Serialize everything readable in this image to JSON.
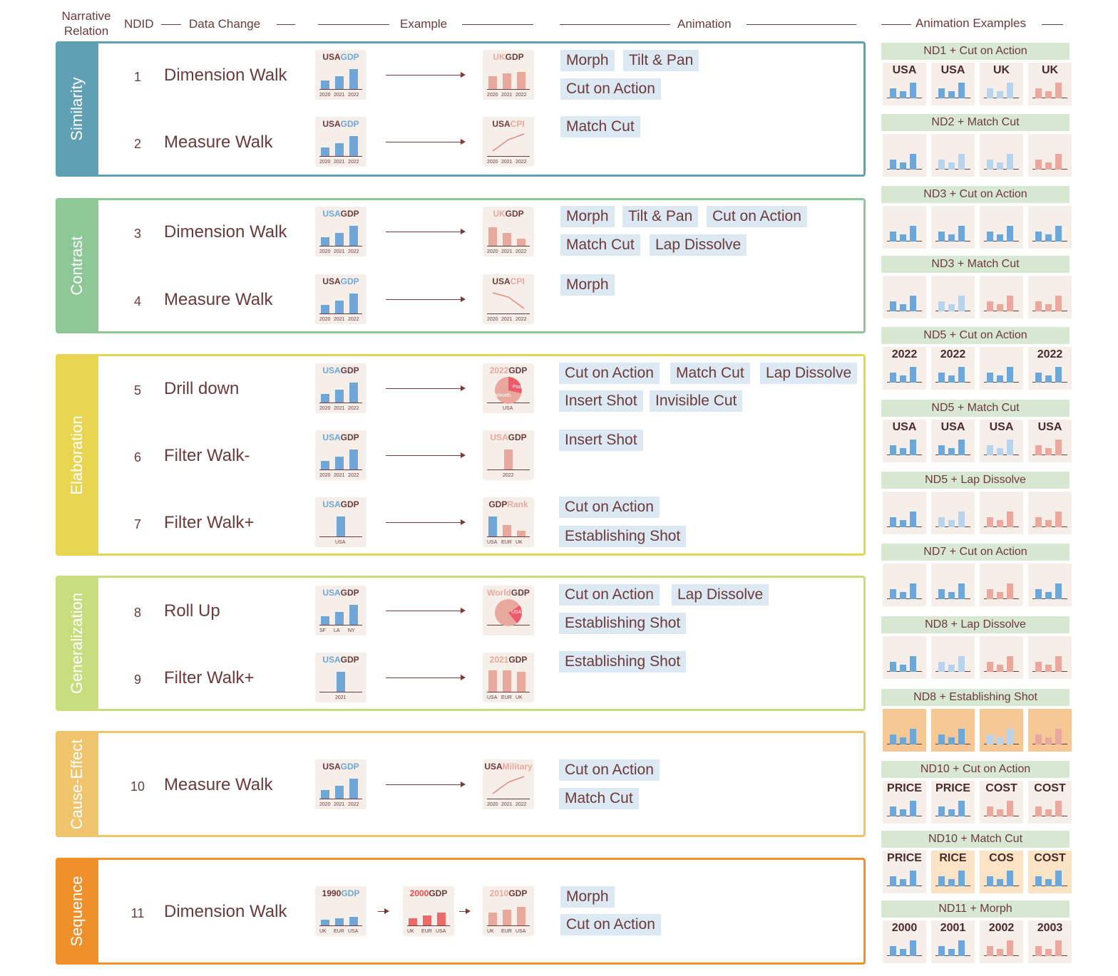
{
  "header": {
    "narrative_relation": "Narrative Relation",
    "ndid": "NDID",
    "data_change": "Data Change",
    "example": "Example",
    "animation": "Animation",
    "animation_examples": "Animation Examples"
  },
  "groups": [
    {
      "name": "Similarity",
      "color": "#5fa0b5"
    },
    {
      "name": "Contrast",
      "color": "#8ec896"
    },
    {
      "name": "Elaboration",
      "color": "#e8d653"
    },
    {
      "name": "Generalization",
      "color": "#c8de7e"
    },
    {
      "name": "Cause-Effect",
      "color": "#f0c46c"
    },
    {
      "name": "Sequence",
      "color": "#f0902a"
    }
  ],
  "rows": [
    {
      "id": "1",
      "change": "Dimension Walk",
      "from": {
        "a": "USA",
        "b": "GDP"
      },
      "to": {
        "a": "UK",
        "b": "GDP"
      },
      "anims": [
        "Morph",
        "Tilt & Pan",
        "Cut on Action"
      ]
    },
    {
      "id": "2",
      "change": "Measure Walk",
      "from": {
        "a": "USA",
        "b": "GDP"
      },
      "to": {
        "a": "USA",
        "b": "CPI"
      },
      "anims": [
        "Match Cut"
      ]
    },
    {
      "id": "3",
      "change": "Dimension Walk",
      "from": {
        "a": "USA",
        "b": "GDP"
      },
      "to": {
        "a": "UK",
        "b": "GDP"
      },
      "anims": [
        "Morph",
        "Tilt & Pan",
        "Cut on Action",
        "Match Cut",
        "Lap Dissolve"
      ]
    },
    {
      "id": "4",
      "change": "Measure Walk",
      "from": {
        "a": "USA",
        "b": "GDP"
      },
      "to": {
        "a": "USA",
        "b": "CPI"
      },
      "anims": [
        "Morph"
      ]
    },
    {
      "id": "5",
      "change": "Drill down",
      "from": {
        "a": "USA",
        "b": "GDP"
      },
      "to": {
        "a": "2022",
        "b": "GDP"
      },
      "anims": [
        "Cut on Action",
        "Match Cut",
        "Lap Dissolve",
        "Insert Shot",
        "Invisible Cut"
      ]
    },
    {
      "id": "6",
      "change": "Filter Walk-",
      "from": {
        "a": "USA",
        "b": "GDP"
      },
      "to": {
        "a": "USA",
        "b": "GDP"
      },
      "anims": [
        "Insert Shot"
      ]
    },
    {
      "id": "7",
      "change": "Filter Walk+",
      "from": {
        "a": "USA",
        "b": "GDP"
      },
      "to": {
        "a": "GDP",
        "b": "Rank"
      },
      "anims": [
        "Cut on Action",
        "Establishing Shot"
      ]
    },
    {
      "id": "8",
      "change": "Roll Up",
      "from": {
        "a": "USA",
        "b": "GDP"
      },
      "to": {
        "a": "World",
        "b": "GDP"
      },
      "anims": [
        "Cut on Action",
        "Lap Dissolve",
        "Establishing Shot"
      ]
    },
    {
      "id": "9",
      "change": "Filter Walk+",
      "from": {
        "a": "USA",
        "b": "GDP"
      },
      "to": {
        "a": "2021",
        "b": "GDP"
      },
      "anims": [
        "Establishing Shot"
      ]
    },
    {
      "id": "10",
      "change": "Measure Walk",
      "from": {
        "a": "USA",
        "b": "GDP"
      },
      "to": {
        "a": "USA",
        "b": "Military"
      },
      "anims": [
        "Cut on Action",
        "Match Cut"
      ]
    },
    {
      "id": "11",
      "change": "Dimension Walk",
      "from": {
        "a": "1990",
        "b": "GDP"
      },
      "mid": {
        "a": "2000",
        "b": "GDP"
      },
      "to": {
        "a": "2010",
        "b": "GDP"
      },
      "anims": [
        "Morph",
        "Cut on Action"
      ]
    }
  ],
  "thumb_labels": {
    "years": [
      "2020",
      "2021",
      "2022"
    ],
    "year_single_2022": "2022",
    "year_single_2021": "2021",
    "usa": "USA",
    "cities": [
      "SF",
      "LA",
      "NY"
    ],
    "countries": [
      "USA",
      "EUR",
      "UK"
    ],
    "countries2": [
      "UK",
      "EUR",
      "USA"
    ],
    "pie_poor": "Poor",
    "pie_wealth": "Wealth"
  },
  "examples": [
    {
      "title": "ND1 + Cut on Action",
      "tiles": [
        "USA",
        "USA",
        "UK",
        "UK"
      ]
    },
    {
      "title": "ND2 + Match Cut",
      "tiles": [
        "",
        "",
        "",
        ""
      ]
    },
    {
      "title": "ND3 + Cut on Action",
      "tiles": [
        "",
        "",
        "",
        ""
      ]
    },
    {
      "title": "ND3 + Match Cut",
      "tiles": [
        "",
        "",
        "",
        ""
      ]
    },
    {
      "title": "ND5 + Cut on Action",
      "tiles": [
        "2022",
        "2022",
        "",
        "2022"
      ]
    },
    {
      "title": "ND5 + Match Cut",
      "tiles": [
        "USA",
        "USA",
        "USA",
        "USA"
      ]
    },
    {
      "title": "ND5 + Lap Dissolve",
      "tiles": [
        "",
        "",
        "",
        ""
      ]
    },
    {
      "title": "ND7 + Cut on Action",
      "tiles": [
        "",
        "",
        "",
        ""
      ]
    },
    {
      "title": "ND8 + Lap Dissolve",
      "tiles": [
        "",
        "",
        "",
        ""
      ]
    },
    {
      "title": "ND8 + Establishing Shot",
      "tiles": [
        "",
        "",
        "",
        ""
      ]
    },
    {
      "title": "ND10 + Cut on Action",
      "tiles": [
        "PRICE",
        "PRICE",
        "COST",
        "COST"
      ]
    },
    {
      "title": "ND10 + Match Cut",
      "tiles": [
        "PRICE",
        "RICE",
        "COS",
        "COST"
      ]
    },
    {
      "title": "ND11 + Morph",
      "tiles": [
        "2000",
        "2001",
        "2002",
        "2003"
      ]
    }
  ]
}
